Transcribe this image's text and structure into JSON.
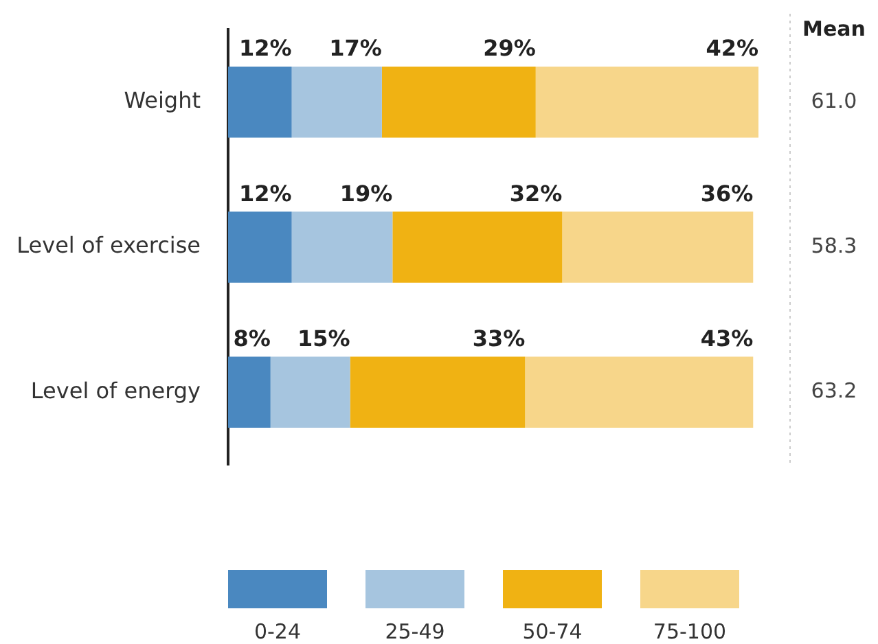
{
  "chart_data": {
    "type": "bar",
    "orientation": "horizontal",
    "stacked": true,
    "categories": [
      "Weight",
      "Level of exercise",
      "Level of energy"
    ],
    "series": [
      {
        "name": "0-24",
        "color": "#4a88c0",
        "values": [
          12,
          12,
          8
        ],
        "value_labels": [
          "12%",
          "12%",
          "8%"
        ]
      },
      {
        "name": "25-49",
        "color": "#a6c5df",
        "values": [
          17,
          19,
          15
        ],
        "value_labels": [
          "17%",
          "19%",
          "15%"
        ]
      },
      {
        "name": "50-74",
        "color": "#f0b213",
        "values": [
          29,
          32,
          33
        ],
        "value_labels": [
          "29%",
          "32%",
          "33%"
        ]
      },
      {
        "name": "75-100",
        "color": "#f7d68a",
        "values": [
          42,
          36,
          43
        ],
        "value_labels": [
          "42%",
          "36%",
          "43%"
        ]
      }
    ],
    "annotations": [
      "Mean",
      "61.0",
      "58.3",
      "63.2"
    ],
    "legend": "bottom"
  }
}
